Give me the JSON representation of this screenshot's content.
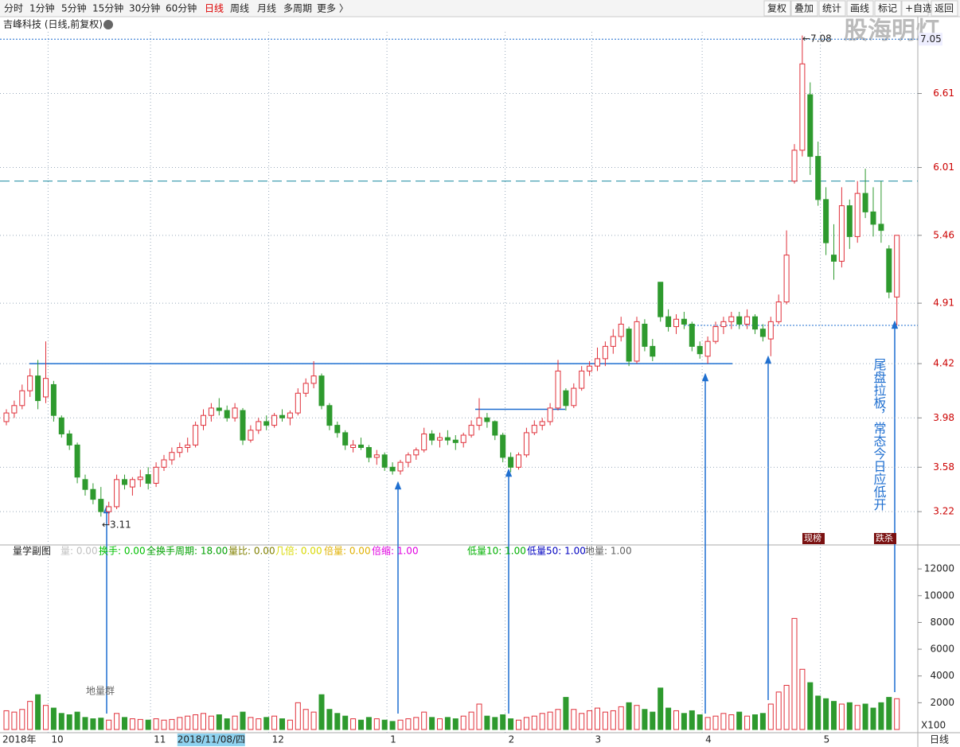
{
  "toolbar": {
    "left": [
      "分时",
      "1分钟",
      "5分钟",
      "15分钟",
      "30分钟",
      "60分钟",
      "日线",
      "周线",
      "月线",
      "多周期",
      "更多 〉"
    ],
    "active": "日线",
    "right": [
      "复权",
      "叠加",
      "统计",
      "画线",
      "标记",
      "+自选",
      "返回"
    ]
  },
  "watermark": "股海明灯",
  "chart_data": [
    {
      "type": "candlestick",
      "title": "吉峰科技 (日线,前复权)",
      "up_color": "#e0303a",
      "down_color": "#2e9a2e",
      "ylim": [
        2.95,
        7.11
      ],
      "yticks": [
        3.22,
        3.58,
        3.98,
        4.42,
        4.91,
        5.46,
        6.01,
        6.61
      ],
      "grid": true,
      "ohlc": [
        [
          3.95,
          4.05,
          3.92,
          4.02
        ],
        [
          4.02,
          4.12,
          3.98,
          4.08
        ],
        [
          4.08,
          4.25,
          4.05,
          4.2
        ],
        [
          4.2,
          4.38,
          4.15,
          4.32
        ],
        [
          4.32,
          4.45,
          4.05,
          4.12
        ],
        [
          4.15,
          4.6,
          4.1,
          4.3
        ],
        [
          4.25,
          4.28,
          3.95,
          4.0
        ],
        [
          3.98,
          4.0,
          3.82,
          3.85
        ],
        [
          3.85,
          3.88,
          3.72,
          3.76
        ],
        [
          3.76,
          3.78,
          3.45,
          3.5
        ],
        [
          3.48,
          3.52,
          3.35,
          3.4
        ],
        [
          3.4,
          3.45,
          3.28,
          3.32
        ],
        [
          3.32,
          3.42,
          3.18,
          3.22
        ],
        [
          3.22,
          3.3,
          3.11,
          3.26
        ],
        [
          3.26,
          3.52,
          3.24,
          3.48
        ],
        [
          3.48,
          3.52,
          3.4,
          3.44
        ],
        [
          3.42,
          3.5,
          3.35,
          3.48
        ],
        [
          3.48,
          3.56,
          3.42,
          3.5
        ],
        [
          3.52,
          3.58,
          3.4,
          3.45
        ],
        [
          3.45,
          3.62,
          3.42,
          3.58
        ],
        [
          3.58,
          3.68,
          3.55,
          3.64
        ],
        [
          3.64,
          3.74,
          3.6,
          3.7
        ],
        [
          3.7,
          3.78,
          3.66,
          3.74
        ],
        [
          3.74,
          3.82,
          3.7,
          3.76
        ],
        [
          3.76,
          3.95,
          3.74,
          3.92
        ],
        [
          3.92,
          4.05,
          3.88,
          4.0
        ],
        [
          4.0,
          4.1,
          3.95,
          4.06
        ],
        [
          4.06,
          4.14,
          4.0,
          4.04
        ],
        [
          4.04,
          4.08,
          3.95,
          3.98
        ],
        [
          3.98,
          4.1,
          3.95,
          4.06
        ],
        [
          4.04,
          4.06,
          3.76,
          3.8
        ],
        [
          3.8,
          3.92,
          3.78,
          3.88
        ],
        [
          3.88,
          3.98,
          3.85,
          3.95
        ],
        [
          3.95,
          4.0,
          3.88,
          3.92
        ],
        [
          3.92,
          4.02,
          3.9,
          4.0
        ],
        [
          4.0,
          4.05,
          3.95,
          3.98
        ],
        [
          3.98,
          4.04,
          3.92,
          4.02
        ],
        [
          4.02,
          4.22,
          4.0,
          4.18
        ],
        [
          4.18,
          4.3,
          4.15,
          4.26
        ],
        [
          4.26,
          4.44,
          4.22,
          4.32
        ],
        [
          4.32,
          4.34,
          4.05,
          4.08
        ],
        [
          4.08,
          4.1,
          3.88,
          3.92
        ],
        [
          3.92,
          3.95,
          3.82,
          3.86
        ],
        [
          3.86,
          3.88,
          3.72,
          3.76
        ],
        [
          3.74,
          3.8,
          3.7,
          3.76
        ],
        [
          3.76,
          3.82,
          3.72,
          3.74
        ],
        [
          3.74,
          3.76,
          3.62,
          3.66
        ],
        [
          3.66,
          3.72,
          3.6,
          3.68
        ],
        [
          3.68,
          3.7,
          3.55,
          3.58
        ],
        [
          3.58,
          3.62,
          3.52,
          3.55
        ],
        [
          3.55,
          3.64,
          3.52,
          3.62
        ],
        [
          3.62,
          3.7,
          3.58,
          3.68
        ],
        [
          3.68,
          3.74,
          3.64,
          3.72
        ],
        [
          3.72,
          3.9,
          3.7,
          3.85
        ],
        [
          3.85,
          3.88,
          3.76,
          3.8
        ],
        [
          3.8,
          3.86,
          3.74,
          3.82
        ],
        [
          3.82,
          3.88,
          3.76,
          3.8
        ],
        [
          3.8,
          3.84,
          3.72,
          3.78
        ],
        [
          3.78,
          3.86,
          3.74,
          3.84
        ],
        [
          3.84,
          3.96,
          3.82,
          3.92
        ],
        [
          3.92,
          4.14,
          3.88,
          3.98
        ],
        [
          3.98,
          4.02,
          3.9,
          3.95
        ],
        [
          3.95,
          3.96,
          3.8,
          3.84
        ],
        [
          3.84,
          3.86,
          3.62,
          3.66
        ],
        [
          3.66,
          3.7,
          3.54,
          3.58
        ],
        [
          3.58,
          3.7,
          3.56,
          3.68
        ],
        [
          3.68,
          3.9,
          3.66,
          3.86
        ],
        [
          3.86,
          3.96,
          3.84,
          3.92
        ],
        [
          3.92,
          3.98,
          3.88,
          3.95
        ],
        [
          3.95,
          4.1,
          3.92,
          4.06
        ],
        [
          4.06,
          4.45,
          4.04,
          4.36
        ],
        [
          4.2,
          4.22,
          4.04,
          4.08
        ],
        [
          4.08,
          4.26,
          4.06,
          4.22
        ],
        [
          4.22,
          4.4,
          4.2,
          4.36
        ],
        [
          4.36,
          4.44,
          4.32,
          4.4
        ],
        [
          4.4,
          4.55,
          4.36,
          4.46
        ],
        [
          4.46,
          4.6,
          4.4,
          4.56
        ],
        [
          4.56,
          4.7,
          4.5,
          4.64
        ],
        [
          4.64,
          4.8,
          4.6,
          4.74
        ],
        [
          4.7,
          4.72,
          4.4,
          4.44
        ],
        [
          4.44,
          4.8,
          4.42,
          4.76
        ],
        [
          4.74,
          4.78,
          4.52,
          4.56
        ],
        [
          4.56,
          4.62,
          4.44,
          4.48
        ],
        [
          5.08,
          5.08,
          4.76,
          4.8
        ],
        [
          4.8,
          4.86,
          4.68,
          4.72
        ],
        [
          4.72,
          4.82,
          4.66,
          4.78
        ],
        [
          4.78,
          4.84,
          4.7,
          4.74
        ],
        [
          4.74,
          4.76,
          4.52,
          4.56
        ],
        [
          4.56,
          4.6,
          4.46,
          4.5
        ],
        [
          4.48,
          4.64,
          4.42,
          4.6
        ],
        [
          4.6,
          4.76,
          4.58,
          4.72
        ],
        [
          4.72,
          4.8,
          4.66,
          4.76
        ],
        [
          4.76,
          4.84,
          4.7,
          4.8
        ],
        [
          4.8,
          4.84,
          4.7,
          4.74
        ],
        [
          4.74,
          4.86,
          4.7,
          4.8
        ],
        [
          4.8,
          4.82,
          4.66,
          4.7
        ],
        [
          4.7,
          4.74,
          4.6,
          4.64
        ],
        [
          4.62,
          4.8,
          4.48,
          4.76
        ],
        [
          4.76,
          4.98,
          4.74,
          4.92
        ],
        [
          4.92,
          5.5,
          4.9,
          5.3
        ],
        [
          5.9,
          6.2,
          5.88,
          6.15
        ],
        [
          6.15,
          7.08,
          6.1,
          6.85
        ],
        [
          6.6,
          6.7,
          5.95,
          6.1
        ],
        [
          6.1,
          6.22,
          5.7,
          5.75
        ],
        [
          5.75,
          5.85,
          5.3,
          5.4
        ],
        [
          5.3,
          5.55,
          5.1,
          5.25
        ],
        [
          5.25,
          5.85,
          5.2,
          5.7
        ],
        [
          5.7,
          5.75,
          5.35,
          5.45
        ],
        [
          5.45,
          5.9,
          5.4,
          5.8
        ],
        [
          5.8,
          6.0,
          5.6,
          5.65
        ],
        [
          5.65,
          5.85,
          5.45,
          5.55
        ],
        [
          5.55,
          5.9,
          5.4,
          5.5
        ],
        [
          5.35,
          5.38,
          4.95,
          5.0
        ],
        [
          4.96,
          5.46,
          4.73,
          5.46
        ]
      ],
      "levels": [
        {
          "value": 4.42,
          "style": "solid"
        },
        {
          "value": 4.05,
          "style": "solid"
        },
        {
          "value": 5.9,
          "style": "dashed"
        },
        {
          "value": 4.73,
          "style": "dotted"
        },
        {
          "value": 7.05,
          "style": "dotted"
        }
      ],
      "price_label": 7.05,
      "xlabels": [
        {
          "index": 0,
          "label": "2018年"
        },
        {
          "index": 6,
          "label": "10"
        },
        {
          "index": 19,
          "label": "11"
        },
        {
          "index": 22,
          "label": "2018/11/08/四"
        },
        {
          "index": 34,
          "label": "12"
        },
        {
          "index": 49,
          "label": "1"
        },
        {
          "index": 64,
          "label": "2"
        },
        {
          "index": 75,
          "label": "3"
        },
        {
          "index": 89,
          "label": "4"
        },
        {
          "index": 104,
          "label": "5"
        }
      ],
      "period_label": "日线",
      "annotations": {
        "low": "←3.11",
        "high": "←7.08",
        "ground": "地量群",
        "note": "尾盘拉板，常态今日应低开"
      },
      "badges": [
        "现榜",
        "跌杀"
      ]
    },
    {
      "type": "volume",
      "title": "量学副图",
      "unit_label": "X100",
      "ylim": [
        0,
        12900
      ],
      "yticks": [
        2000,
        4000,
        6000,
        8000,
        10000,
        12000
      ],
      "legend": [
        {
          "label": "量: 0.00",
          "color": "#c0c0c0"
        },
        {
          "label": "换手: 0.00",
          "color": "#00c000"
        },
        {
          "label": "全换手周期: 18.00",
          "color": "#00a000"
        },
        {
          "label": "量比: 0.00",
          "color": "#808000"
        },
        {
          "label": "几倍: 0.00",
          "color": "#d8d800"
        },
        {
          "label": "倍量: 0.00",
          "color": "#e0b000"
        },
        {
          "label": "倍缩: 1.00",
          "color": "#e000e0"
        },
        {
          "label": "低量10: 1.00",
          "color": "#00b000"
        },
        {
          "label": "低量50: 1.00",
          "color": "#0000c0"
        },
        {
          "label": "地量: 1.00",
          "color": "#606060"
        }
      ],
      "values": [
        1400,
        1300,
        1500,
        2100,
        2600,
        1800,
        1600,
        1200,
        1100,
        1300,
        900,
        800,
        850,
        700,
        1200,
        900,
        800,
        750,
        700,
        800,
        700,
        750,
        900,
        1000,
        1100,
        1200,
        1000,
        1100,
        800,
        1000,
        1300,
        900,
        800,
        900,
        1000,
        800,
        700,
        2000,
        1500,
        1300,
        2600,
        1500,
        1200,
        1000,
        800,
        700,
        900,
        800,
        700,
        600,
        700,
        800,
        900,
        1300,
        900,
        800,
        900,
        800,
        1000,
        1300,
        1900,
        1000,
        900,
        1100,
        800,
        700,
        900,
        1000,
        1200,
        1300,
        1500,
        2400,
        1500,
        1200,
        1400,
        1600,
        1300,
        1400,
        1700,
        2000,
        1800,
        1500,
        1300,
        3100,
        1600,
        1400,
        1200,
        1400,
        1100,
        900,
        1000,
        1200,
        1100,
        1300,
        1000,
        1100,
        1200,
        1900,
        2800,
        3300,
        8300,
        4500,
        3500,
        2500,
        2300,
        2100,
        1900,
        2000,
        1800,
        1900,
        1600,
        2000,
        2400,
        2300
      ]
    }
  ]
}
